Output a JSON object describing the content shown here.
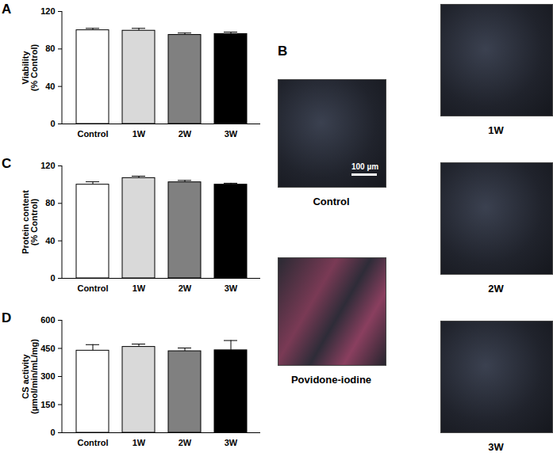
{
  "chart_data": [
    {
      "type": "bar",
      "title": "A",
      "y_label": "Viability\n(% Control)",
      "categories": [
        "Control",
        "1W",
        "2W",
        "3W"
      ],
      "values": [
        100,
        99.5,
        95,
        96
      ],
      "errors": [
        2,
        2.5,
        2,
        2
      ],
      "colors": [
        "#ffffff",
        "#d9d9d9",
        "#808080",
        "#000000"
      ],
      "ylim": [
        0,
        120
      ],
      "yticks": [
        0,
        40,
        80,
        120
      ]
    },
    {
      "type": "bar",
      "title": "C",
      "y_label": "Protein content\n(% Control)",
      "categories": [
        "Control",
        "1W",
        "2W",
        "3W"
      ],
      "values": [
        100,
        107,
        102.5,
        100
      ],
      "errors": [
        3,
        2,
        2,
        1.5
      ],
      "colors": [
        "#ffffff",
        "#d9d9d9",
        "#808080",
        "#000000"
      ],
      "ylim": [
        0,
        120
      ],
      "yticks": [
        0,
        40,
        80,
        120
      ]
    },
    {
      "type": "bar",
      "title": "D",
      "y_label": "CS activity\n(µmol/min/mL/mg)",
      "categories": [
        "Control",
        "1W",
        "2W",
        "3W"
      ],
      "values": [
        438,
        458,
        435,
        440
      ],
      "errors": [
        32,
        15,
        17,
        52
      ],
      "colors": [
        "#ffffff",
        "#d9d9d9",
        "#808080",
        "#000000"
      ],
      "ylim": [
        0,
        600
      ],
      "yticks": [
        0,
        150,
        300,
        450,
        600
      ]
    }
  ],
  "panel_b": {
    "title": "B",
    "scale_bar": "100 µm",
    "images": [
      {
        "caption": "Control"
      },
      {
        "caption": "Povidone-iodine"
      },
      {
        "caption": "1W"
      },
      {
        "caption": "2W"
      },
      {
        "caption": "3W"
      }
    ]
  }
}
